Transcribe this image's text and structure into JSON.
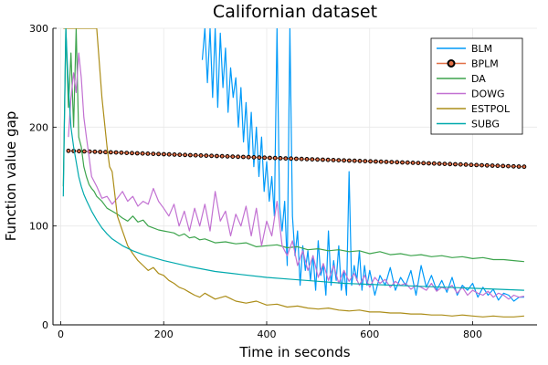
{
  "chart_data": {
    "type": "line",
    "title": "Californian dataset",
    "xlabel": "Time in seconds",
    "ylabel": "Function value gap",
    "xlim": [
      -15,
      925
    ],
    "ylim": [
      0,
      300
    ],
    "xticks": [
      0,
      200,
      400,
      600,
      800
    ],
    "yticks": [
      0,
      100,
      200,
      300
    ],
    "grid": true,
    "legend_position": "top-right",
    "series": [
      {
        "name": "BLM",
        "color": "#009af9",
        "x": [
          275,
          280,
          285,
          290,
          295,
          300,
          305,
          310,
          315,
          320,
          325,
          330,
          335,
          340,
          345,
          350,
          355,
          360,
          365,
          370,
          375,
          380,
          385,
          390,
          395,
          400,
          405,
          410,
          415,
          420,
          425,
          430,
          435,
          440,
          445,
          450,
          455,
          460,
          465,
          470,
          475,
          480,
          485,
          490,
          495,
          500,
          505,
          510,
          515,
          520,
          525,
          530,
          535,
          540,
          545,
          550,
          555,
          560,
          565,
          570,
          575,
          580,
          585,
          590,
          595,
          600,
          610,
          620,
          630,
          640,
          650,
          660,
          670,
          680,
          690,
          700,
          710,
          720,
          730,
          740,
          750,
          760,
          770,
          780,
          790,
          800,
          810,
          820,
          830,
          840,
          850,
          860,
          870,
          880,
          890,
          900
        ],
        "values": [
          268,
          300,
          245,
          300,
          230,
          300,
          220,
          295,
          240,
          280,
          215,
          260,
          230,
          250,
          200,
          240,
          185,
          225,
          170,
          215,
          160,
          200,
          150,
          190,
          135,
          165,
          125,
          150,
          110,
          300,
          120,
          95,
          125,
          60,
          300,
          110,
          70,
          95,
          40,
          80,
          55,
          75,
          45,
          70,
          35,
          85,
          50,
          60,
          30,
          95,
          40,
          65,
          45,
          80,
          35,
          55,
          30,
          155,
          40,
          60,
          45,
          75,
          35,
          60,
          40,
          55,
          30,
          50,
          40,
          58,
          35,
          48,
          40,
          55,
          30,
          60,
          38,
          50,
          35,
          45,
          33,
          48,
          30,
          40,
          35,
          42,
          28,
          38,
          30,
          36,
          25,
          32,
          30,
          24,
          28,
          28
        ]
      },
      {
        "name": "BPLM",
        "color": "#e26f46",
        "marker": true,
        "x": [
          15,
          900
        ],
        "values": [
          176,
          160
        ]
      },
      {
        "name": "DA",
        "color": "#3da44d",
        "x": [
          5,
          10,
          15,
          20,
          25,
          30,
          35,
          40,
          45,
          50,
          55,
          60,
          65,
          70,
          80,
          90,
          100,
          110,
          120,
          130,
          140,
          150,
          160,
          170,
          180,
          190,
          200,
          210,
          220,
          230,
          240,
          250,
          260,
          270,
          280,
          290,
          300,
          320,
          340,
          360,
          380,
          400,
          420,
          440,
          460,
          480,
          500,
          520,
          540,
          560,
          580,
          600,
          620,
          640,
          660,
          680,
          700,
          720,
          740,
          760,
          780,
          800,
          820,
          840,
          860,
          880,
          900
        ],
        "values": [
          140,
          300,
          220,
          275,
          200,
          300,
          190,
          180,
          160,
          150,
          142,
          138,
          135,
          130,
          125,
          118,
          115,
          112,
          108,
          105,
          110,
          104,
          106,
          100,
          98,
          96,
          95,
          94,
          93,
          90,
          92,
          88,
          89,
          86,
          87,
          85,
          83,
          84,
          82,
          83,
          79,
          80,
          81,
          78,
          79,
          76,
          77,
          75,
          76,
          74,
          75,
          72,
          74,
          71,
          72,
          70,
          71,
          69,
          70,
          68,
          69,
          67,
          68,
          66,
          66,
          65,
          64
        ]
      },
      {
        "name": "DOWG",
        "color": "#c271d2",
        "x": [
          15,
          20,
          25,
          30,
          35,
          40,
          45,
          50,
          55,
          60,
          70,
          80,
          90,
          100,
          110,
          120,
          130,
          140,
          150,
          160,
          170,
          180,
          190,
          200,
          210,
          220,
          230,
          240,
          250,
          260,
          270,
          280,
          290,
          300,
          310,
          320,
          330,
          340,
          350,
          360,
          370,
          380,
          390,
          400,
          410,
          420,
          430,
          440,
          450,
          460,
          470,
          480,
          490,
          500,
          510,
          520,
          530,
          540,
          550,
          560,
          570,
          580,
          590,
          600,
          610,
          620,
          630,
          640,
          650,
          660,
          670,
          680,
          690,
          700,
          710,
          720,
          730,
          740,
          750,
          760,
          770,
          780,
          790,
          800,
          810,
          820,
          830,
          840,
          850,
          860,
          870,
          880,
          890,
          900
        ],
        "values": [
          190,
          230,
          255,
          235,
          275,
          250,
          210,
          190,
          170,
          150,
          140,
          128,
          130,
          122,
          128,
          135,
          125,
          130,
          120,
          125,
          122,
          138,
          125,
          118,
          110,
          122,
          100,
          115,
          95,
          118,
          100,
          122,
          95,
          135,
          105,
          115,
          90,
          112,
          100,
          120,
          90,
          118,
          80,
          105,
          90,
          125,
          80,
          70,
          85,
          60,
          75,
          55,
          70,
          48,
          62,
          45,
          60,
          42,
          55,
          44,
          52,
          40,
          50,
          38,
          48,
          42,
          46,
          38,
          44,
          40,
          42,
          36,
          40,
          38,
          35,
          42,
          34,
          38,
          36,
          40,
          32,
          38,
          30,
          35,
          32,
          30,
          34,
          28,
          32,
          30,
          26,
          30,
          28,
          29
        ]
      },
      {
        "name": "ESTPOL",
        "color": "#ac8d18",
        "x": [
          5,
          10,
          20,
          30,
          40,
          50,
          60,
          70,
          80,
          90,
          95,
          100,
          110,
          120,
          130,
          140,
          150,
          160,
          170,
          180,
          190,
          200,
          210,
          220,
          230,
          240,
          250,
          260,
          270,
          280,
          300,
          320,
          340,
          360,
          380,
          400,
          420,
          440,
          460,
          480,
          500,
          520,
          540,
          560,
          580,
          600,
          620,
          640,
          660,
          680,
          700,
          720,
          740,
          760,
          780,
          800,
          820,
          840,
          860,
          880,
          900
        ],
        "values": [
          300,
          300,
          300,
          300,
          300,
          300,
          300,
          300,
          230,
          180,
          160,
          155,
          110,
          95,
          80,
          72,
          65,
          60,
          55,
          58,
          52,
          50,
          45,
          42,
          38,
          36,
          33,
          30,
          28,
          32,
          26,
          29,
          24,
          22,
          24,
          20,
          21,
          18,
          19,
          17,
          16,
          17,
          15,
          14,
          15,
          13,
          13,
          12,
          12,
          11,
          11,
          10,
          10,
          9,
          10,
          9,
          8,
          9,
          8,
          8,
          9
        ]
      },
      {
        "name": "SUBG",
        "color": "#00a9ad",
        "x": [
          5,
          10,
          15,
          20,
          25,
          30,
          35,
          40,
          45,
          50,
          60,
          70,
          80,
          90,
          100,
          120,
          140,
          160,
          180,
          200,
          250,
          300,
          350,
          400,
          450,
          500,
          550,
          600,
          650,
          700,
          750,
          800,
          850,
          900
        ],
        "values": [
          130,
          300,
          240,
          200,
          180,
          165,
          150,
          140,
          132,
          126,
          115,
          106,
          98,
          92,
          87,
          80,
          75,
          71,
          68,
          65,
          59,
          54,
          51,
          48,
          46,
          44,
          42,
          41,
          40,
          39,
          38,
          37,
          36,
          35
        ]
      }
    ]
  }
}
